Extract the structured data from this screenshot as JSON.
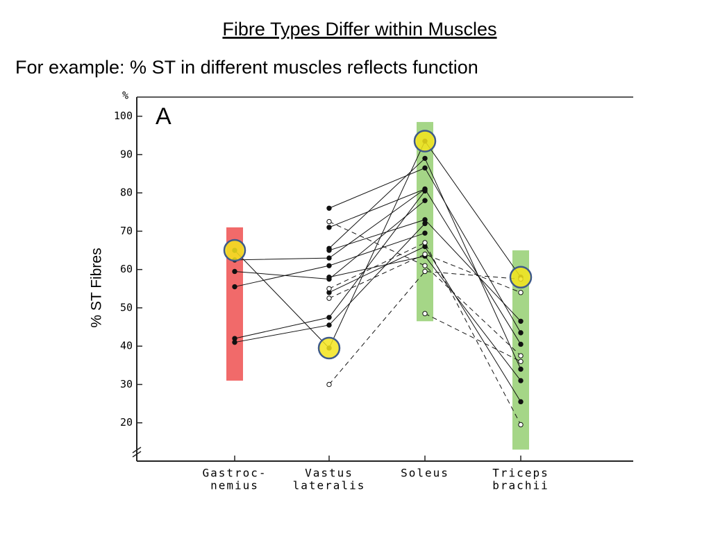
{
  "chart_data": {
    "type": "line",
    "title": "Fibre Types Differ within Muscles",
    "subtitle": "For example: % ST in different muscles reflects function",
    "ylabel": "% ST Fibres",
    "yunit": "%",
    "panel": "A",
    "categories": [
      [
        "Gastroc-",
        "nemius"
      ],
      [
        "Vastus",
        "lateralis"
      ],
      [
        "Soleus"
      ],
      [
        "Triceps",
        "brachii"
      ]
    ],
    "ylim": [
      10,
      105
    ],
    "yticks": [
      20,
      30,
      40,
      50,
      60,
      70,
      80,
      90,
      100
    ],
    "color": "#111111",
    "series": [
      {
        "color": "#111111",
        "dashed": false,
        "values": [
          62.5,
          63,
          81,
          null
        ]
      },
      {
        "color": "#111111",
        "dashed": false,
        "values": [
          59.5,
          57.5,
          78,
          null
        ]
      },
      {
        "color": "#111111",
        "dashed": false,
        "values": [
          55.5,
          61,
          69.5,
          null
        ]
      },
      {
        "color": "#111111",
        "dashed": false,
        "values": [
          42,
          47.5,
          80.5,
          null
        ]
      },
      {
        "color": "#111111",
        "dashed": false,
        "values": [
          41,
          45.5,
          72,
          null
        ]
      },
      {
        "color": "#111111",
        "dashed": false,
        "values": [
          65,
          39.5,
          93.5,
          58
        ]
      },
      {
        "color": "#111111",
        "dashed": false,
        "values": [
          null,
          76,
          86.5,
          43.5
        ]
      },
      {
        "color": "#111111",
        "dashed": false,
        "values": [
          null,
          71,
          81,
          40.5
        ]
      },
      {
        "color": "#111111",
        "dashed": false,
        "values": [
          null,
          65.5,
          89,
          34
        ]
      },
      {
        "color": "#111111",
        "dashed": false,
        "values": [
          null,
          65,
          73,
          46.5
        ]
      },
      {
        "color": "#111111",
        "dashed": false,
        "values": [
          null,
          58,
          63.5,
          31
        ]
      },
      {
        "color": "#111111",
        "dashed": false,
        "values": [
          null,
          54,
          66,
          25.5
        ]
      },
      {
        "color": "#111111",
        "dashed": true,
        "values": [
          null,
          72.5,
          61,
          37.5
        ]
      },
      {
        "color": "#111111",
        "dashed": true,
        "values": [
          null,
          55,
          67,
          19.5
        ]
      },
      {
        "color": "#111111",
        "dashed": true,
        "values": [
          null,
          52.5,
          64,
          54
        ]
      },
      {
        "color": "#111111",
        "dashed": true,
        "values": [
          null,
          30,
          59.5,
          57.5
        ]
      },
      {
        "color": "#111111",
        "dashed": true,
        "values": [
          null,
          null,
          48.5,
          36
        ]
      }
    ],
    "bands": [
      {
        "from": 31,
        "to": 71,
        "color": "#f05a5a"
      },
      null,
      {
        "from": 46.5,
        "to": 98.5,
        "color": "#9bd27a"
      },
      {
        "from": 13,
        "to": 65,
        "color": "#9bd27a"
      }
    ],
    "highlights": [
      65,
      39.5,
      93.5,
      58
    ],
    "highlight_color": "#f3e41c",
    "highlight_stroke": "#3f5a8a"
  }
}
